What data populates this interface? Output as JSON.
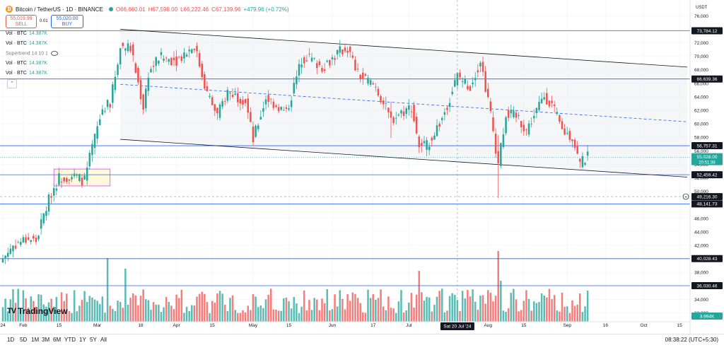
{
  "header": {
    "pair": "Bitcoin / TetherUS · 1D · BINANCE",
    "open": "O66,660.01",
    "high": "H67,598.00",
    "low": "L66,222.46",
    "close": "C67,139.96",
    "change": "+479.96 (+0.72%)",
    "logo_glyph": "₿"
  },
  "trade": {
    "sell_price": "55,019.99",
    "sell_label": "SELL",
    "spread": "0.01",
    "buy_price": "55,020.00",
    "buy_label": "BUY"
  },
  "legend": [
    {
      "label": "Vol · BTC",
      "value": "14.387K"
    },
    {
      "label": "Vol · BTC",
      "value": "14.387K"
    },
    {
      "label": "Supertrend 14 10 1",
      "value": ""
    },
    {
      "label": "Vol · BTC",
      "value": "14.387K"
    },
    {
      "label": "Vol · BTC",
      "value": "14.387K"
    }
  ],
  "collapse_glyph": "⌃",
  "brand": {
    "mark": "TV",
    "name": "TradingView"
  },
  "timeframes": [
    "1D",
    "5D",
    "1M",
    "3M",
    "6M",
    "YTD",
    "1Y",
    "5Y",
    "All"
  ],
  "clock": "08:38:22 (UTC+5:30)",
  "colors": {
    "up": "#26a69a",
    "down": "#ef5350",
    "hline": "#2962ff",
    "channel": "#131722",
    "price_label": "#131722",
    "current_label": "#26a69a",
    "crosshair_label": "#131722"
  },
  "chart_data": {
    "type": "candlestick",
    "currency": "USDT",
    "y_range": [
      31000,
      77500
    ],
    "y_ticks": [
      32000,
      34000,
      36000,
      38000,
      40000,
      42000,
      44000,
      46000,
      48000,
      50000,
      52000,
      54000,
      56000,
      58000,
      60000,
      62000,
      64000,
      66000,
      68000,
      70000,
      72000,
      74000,
      76000
    ],
    "y_tick_labels": [
      "32,000",
      "34,000",
      "36,000",
      "38,000",
      "40,000",
      "42,000",
      "44,000",
      "46,000",
      "48,000",
      "50,000",
      "52,000",
      "54,000",
      "56,000",
      "58,000",
      "60,000",
      "62,000",
      "64,000",
      "66,000",
      "68,000",
      "70,000",
      "72,000",
      "74,000",
      "76,000"
    ],
    "x_range": [
      "2024-01-24",
      "2024-10-18"
    ],
    "x_tick_labels": [
      {
        "date": "2024-01-24",
        "label": "24"
      },
      {
        "date": "2024-02-01",
        "label": "Feb"
      },
      {
        "date": "2024-02-15",
        "label": "15"
      },
      {
        "date": "2024-03-01",
        "label": "Mar"
      },
      {
        "date": "2024-03-18",
        "label": "18"
      },
      {
        "date": "2024-04-01",
        "label": "Apr"
      },
      {
        "date": "2024-04-15",
        "label": "15"
      },
      {
        "date": "2024-05-01",
        "label": "May"
      },
      {
        "date": "2024-05-15",
        "label": "15"
      },
      {
        "date": "2024-06-01",
        "label": "Jun"
      },
      {
        "date": "2024-06-17",
        "label": "17"
      },
      {
        "date": "2024-07-01",
        "label": "Jul"
      },
      {
        "date": "2024-08-01",
        "label": "Aug"
      },
      {
        "date": "2024-08-15",
        "label": "15"
      },
      {
        "date": "2024-09-01",
        "label": "Sep"
      },
      {
        "date": "2024-09-16",
        "label": "16"
      },
      {
        "date": "2024-10-01",
        "label": "Oct"
      },
      {
        "date": "2024-10-15",
        "label": "15"
      }
    ],
    "crosshair": {
      "date": "2024-07-20",
      "label": "Sat 20 Jul '24",
      "price": 49216.3,
      "price_label": "49,216.30"
    },
    "horizontal_levels": [
      {
        "price": 73784.12,
        "label": "73,784.12"
      },
      {
        "price": 66639.36,
        "label": "66,639.36"
      },
      {
        "price": 56757.31,
        "label": "56,757.31"
      },
      {
        "price": 52459.42,
        "label": "52,459.42"
      },
      {
        "price": 48141.73,
        "label": "48,141.73"
      },
      {
        "price": 40028.43,
        "label": "40,028.43"
      },
      {
        "price": 36030.46,
        "label": "36,030.46"
      }
    ],
    "current_price": {
      "value": 55028.0,
      "label": "55,028.00",
      "countdown": "20:51:38"
    },
    "volume_label": "3.994K",
    "channel": {
      "upper": [
        [
          "2024-03-10",
          74000
        ],
        [
          "2024-10-18",
          68400
        ]
      ],
      "lower": [
        [
          "2024-03-10",
          57700
        ],
        [
          "2024-10-18",
          52100
        ]
      ],
      "mid": [
        [
          "2024-03-10",
          65850
        ],
        [
          "2024-10-18",
          60300
        ]
      ]
    },
    "consolidation_box": {
      "x": [
        "2024-02-13",
        "2024-03-06"
      ],
      "y": [
        50800,
        53300
      ]
    },
    "anchors": [
      [
        "2024-01-24",
        40100
      ],
      [
        "2024-01-28",
        42000
      ],
      [
        "2024-01-31",
        42600
      ],
      [
        "2024-02-03",
        43000
      ],
      [
        "2024-02-06",
        42600
      ],
      [
        "2024-02-09",
        46500
      ],
      [
        "2024-02-12",
        49800
      ],
      [
        "2024-02-15",
        52000
      ],
      [
        "2024-02-20",
        52300
      ],
      [
        "2024-02-25",
        51600
      ],
      [
        "2024-02-28",
        56500
      ],
      [
        "2024-03-03",
        62200
      ],
      [
        "2024-03-06",
        63000
      ],
      [
        "2024-03-10",
        71500
      ],
      [
        "2024-03-14",
        71200
      ],
      [
        "2024-03-19",
        62500
      ],
      [
        "2024-03-21",
        67500
      ],
      [
        "2024-03-25",
        69800
      ],
      [
        "2024-04-01",
        69500
      ],
      [
        "2024-04-08",
        71600
      ],
      [
        "2024-04-13",
        64500
      ],
      [
        "2024-04-17",
        61200
      ],
      [
        "2024-04-21",
        64800
      ],
      [
        "2024-04-28",
        63500
      ],
      [
        "2024-05-01",
        57600
      ],
      [
        "2024-05-06",
        63900
      ],
      [
        "2024-05-14",
        61600
      ],
      [
        "2024-05-20",
        69500
      ],
      [
        "2024-05-22",
        70000
      ],
      [
        "2024-05-28",
        68400
      ],
      [
        "2024-06-04",
        70700
      ],
      [
        "2024-06-07",
        71200
      ],
      [
        "2024-06-11",
        67300
      ],
      [
        "2024-06-18",
        65500
      ],
      [
        "2024-06-24",
        60500
      ],
      [
        "2024-06-27",
        61500
      ],
      [
        "2024-07-02",
        62500
      ],
      [
        "2024-07-05",
        56800
      ],
      [
        "2024-07-08",
        56700
      ],
      [
        "2024-07-14",
        60800
      ],
      [
        "2024-07-20",
        67100
      ],
      [
        "2024-07-25",
        65500
      ],
      [
        "2024-07-29",
        69500
      ],
      [
        "2024-08-02",
        61400
      ],
      [
        "2024-08-05",
        54000
      ],
      [
        "2024-08-08",
        61600
      ],
      [
        "2024-08-13",
        60800
      ],
      [
        "2024-08-16",
        59000
      ],
      [
        "2024-08-23",
        64200
      ],
      [
        "2024-08-26",
        62800
      ],
      [
        "2024-08-30",
        59000
      ],
      [
        "2024-09-03",
        58000
      ],
      [
        "2024-09-06",
        54000
      ],
      [
        "2024-09-09",
        55100
      ]
    ],
    "shock_wicks": [
      {
        "date": "2024-08-05",
        "low": 49000,
        "high": 58300
      },
      {
        "date": "2024-06-24",
        "low": 57900,
        "high": 63300
      }
    ],
    "volume_spikes": [
      {
        "date": "2024-03-05",
        "value": 0.9
      },
      {
        "date": "2024-08-05",
        "value": 1.0
      },
      {
        "date": "2024-03-12",
        "value": 0.75
      },
      {
        "date": "2024-07-05",
        "value": 0.72
      },
      {
        "date": "2024-08-06",
        "value": 0.58
      },
      {
        "date": "2024-09-06",
        "value": 0.4
      }
    ]
  }
}
